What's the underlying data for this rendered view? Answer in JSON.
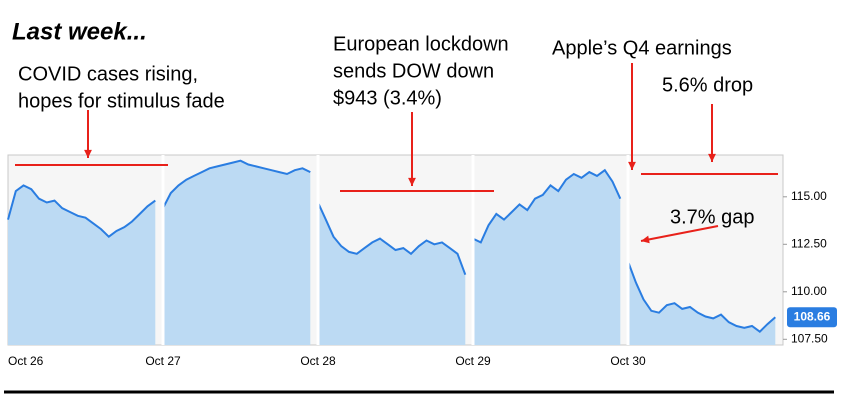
{
  "chart_data": {
    "type": "line",
    "title": "Last week...",
    "annotations": [
      {
        "lines": [
          "COVID cases rising,",
          "hopes for stimulus fade"
        ]
      },
      {
        "lines": [
          "European lockdown",
          "sends DOW down",
          "$943 (3.4%)"
        ]
      },
      {
        "lines": [
          "Apple’s Q4 earnings"
        ]
      },
      {
        "lines": [
          "5.6% drop"
        ]
      },
      {
        "lines": [
          "3.7% gap"
        ]
      }
    ],
    "x": [
      0,
      0.05,
      0.1,
      0.15,
      0.2,
      0.25,
      0.3,
      0.35,
      0.4,
      0.45,
      0.5,
      0.55,
      0.6,
      0.65,
      0.7,
      0.75,
      0.8,
      0.85,
      0.9,
      0.95,
      0.975,
      1,
      1.05,
      1.1,
      1.15,
      1.2,
      1.25,
      1.3,
      1.35,
      1.4,
      1.45,
      1.5,
      1.55,
      1.6,
      1.65,
      1.7,
      1.75,
      1.8,
      1.85,
      1.9,
      1.95,
      1.975,
      2,
      2.05,
      2.1,
      2.15,
      2.2,
      2.25,
      2.3,
      2.35,
      2.4,
      2.45,
      2.5,
      2.55,
      2.6,
      2.65,
      2.7,
      2.75,
      2.8,
      2.85,
      2.9,
      2.95,
      2.975,
      3,
      3.05,
      3.1,
      3.15,
      3.2,
      3.25,
      3.3,
      3.35,
      3.4,
      3.45,
      3.5,
      3.55,
      3.6,
      3.65,
      3.7,
      3.75,
      3.8,
      3.85,
      3.9,
      3.95,
      3.975,
      4,
      4.05,
      4.1,
      4.15,
      4.2,
      4.25,
      4.3,
      4.35,
      4.4,
      4.45,
      4.5,
      4.55,
      4.6,
      4.65,
      4.7,
      4.75,
      4.8,
      4.85,
      4.9,
      4.95
    ],
    "series": [
      {
        "color": "#2a7de1",
        "fill": "#bcdaf3",
        "values": [
          113.8,
          115.3,
          115.6,
          115.4,
          114.9,
          114.7,
          114.8,
          114.4,
          114.2,
          114.0,
          113.9,
          113.6,
          113.3,
          112.9,
          113.2,
          113.4,
          113.7,
          114.1,
          114.5,
          114.8,
          null,
          114.4,
          115.2,
          115.6,
          115.9,
          116.1,
          116.3,
          116.5,
          116.6,
          116.7,
          116.8,
          116.9,
          116.7,
          116.6,
          116.5,
          116.4,
          116.3,
          116.2,
          116.4,
          116.5,
          116.3,
          null,
          114.7,
          113.8,
          112.9,
          112.4,
          112.1,
          112.0,
          112.3,
          112.6,
          112.8,
          112.5,
          112.2,
          112.3,
          112.0,
          112.4,
          112.7,
          112.5,
          112.6,
          112.3,
          112.0,
          110.9,
          null,
          112.8,
          112.6,
          113.5,
          114.1,
          113.8,
          114.2,
          114.6,
          114.3,
          114.9,
          115.1,
          115.6,
          115.3,
          115.9,
          116.2,
          116.0,
          116.3,
          116.1,
          116.4,
          115.8,
          114.9,
          null,
          111.6,
          110.5,
          109.6,
          109.0,
          108.9,
          109.3,
          109.4,
          109.1,
          109.2,
          108.9,
          108.7,
          108.6,
          108.8,
          108.4,
          108.2,
          108.1,
          108.2,
          107.9,
          108.3,
          108.66
        ]
      }
    ],
    "xlim": [
      0,
      5
    ],
    "xticks": [
      {
        "value": 0,
        "label": "Oct 26"
      },
      {
        "value": 1,
        "label": "Oct 27"
      },
      {
        "value": 2,
        "label": "Oct 28"
      },
      {
        "value": 3,
        "label": "Oct 29"
      },
      {
        "value": 4,
        "label": "Oct 30"
      }
    ],
    "ylim": [
      107.2,
      117.2
    ],
    "yticks": [
      {
        "value": 107.5,
        "label": "107.50"
      },
      {
        "value": 110,
        "label": "110.00"
      },
      {
        "value": 112.5,
        "label": "112.50"
      },
      {
        "value": 115,
        "label": "115.00"
      }
    ],
    "grid": false
  }
}
